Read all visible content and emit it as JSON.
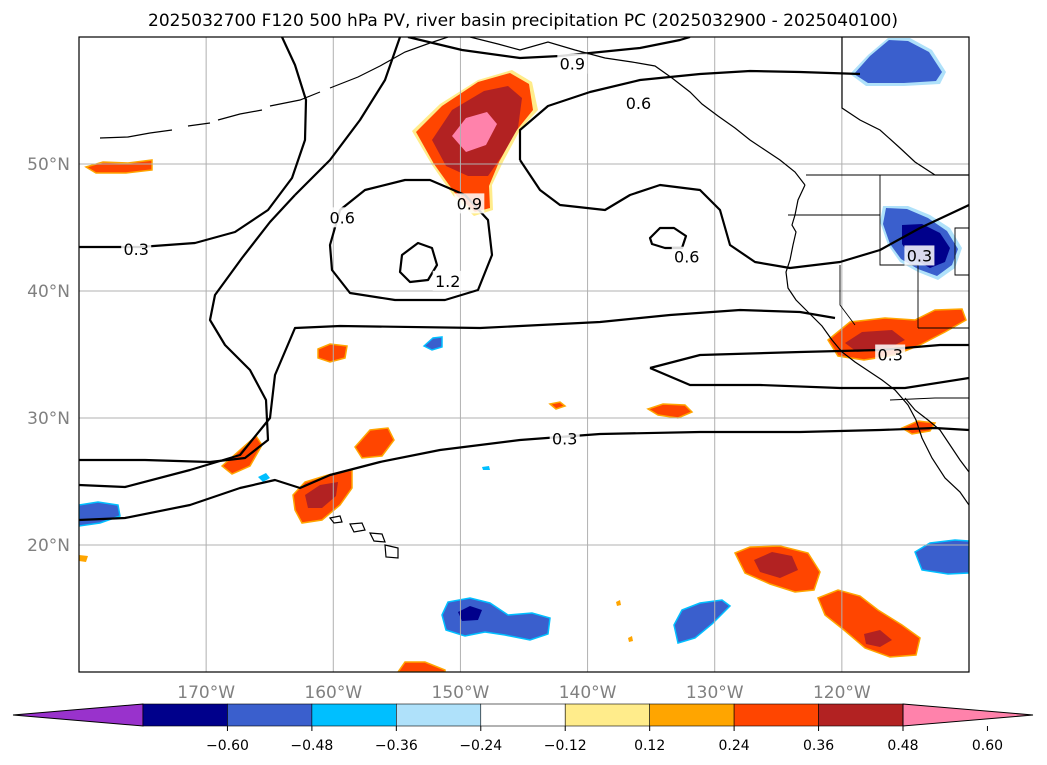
{
  "title": "2025032700 F120 500 hPa PV, river basin precipitation PC (2025032900 - 2025040100)",
  "map": {
    "lon_range": [
      -180,
      -110
    ],
    "lat_range": [
      10,
      60
    ],
    "lon_ticks": [
      {
        "value": -170,
        "label": "170°W"
      },
      {
        "value": -160,
        "label": "160°W"
      },
      {
        "value": -150,
        "label": "150°W"
      },
      {
        "value": -140,
        "label": "140°W"
      },
      {
        "value": -130,
        "label": "130°W"
      },
      {
        "value": -120,
        "label": "120°W"
      }
    ],
    "lat_ticks": [
      {
        "value": 20,
        "label": "20°N"
      },
      {
        "value": 30,
        "label": "30°N"
      },
      {
        "value": 40,
        "label": "40°N"
      },
      {
        "value": 50,
        "label": "50°N"
      }
    ],
    "grid": true
  },
  "contour_labels": [
    {
      "text": "0.9",
      "lon": -141.2,
      "lat": 57.9
    },
    {
      "text": "0.6",
      "lon": -136.0,
      "lat": 54.8
    },
    {
      "text": "0.6",
      "lon": -159.3,
      "lat": 45.8
    },
    {
      "text": "0.9",
      "lon": -149.3,
      "lat": 46.9
    },
    {
      "text": "0.3",
      "lon": -175.5,
      "lat": 43.3
    },
    {
      "text": "1.2",
      "lon": -151.0,
      "lat": 40.8
    },
    {
      "text": "0.6",
      "lon": -132.2,
      "lat": 42.7
    },
    {
      "text": "0.3",
      "lon": -113.9,
      "lat": 42.8
    },
    {
      "text": "0.3",
      "lon": -116.2,
      "lat": 35.0
    },
    {
      "text": "0.3",
      "lon": -141.8,
      "lat": 28.4
    }
  ],
  "colorbar": {
    "ticks": [
      "−0.60",
      "−0.48",
      "−0.36",
      "−0.24",
      "−0.12",
      "0.12",
      "0.24",
      "0.36",
      "0.48",
      "0.60"
    ],
    "colors": [
      "#9932cc",
      "#00008b",
      "#3a5fcd",
      "#00bfff",
      "#afe1fa",
      "#ffffff",
      "#ffec8b",
      "#ffa500",
      "#ff4500",
      "#b22222",
      "#ff82ab"
    ]
  }
}
